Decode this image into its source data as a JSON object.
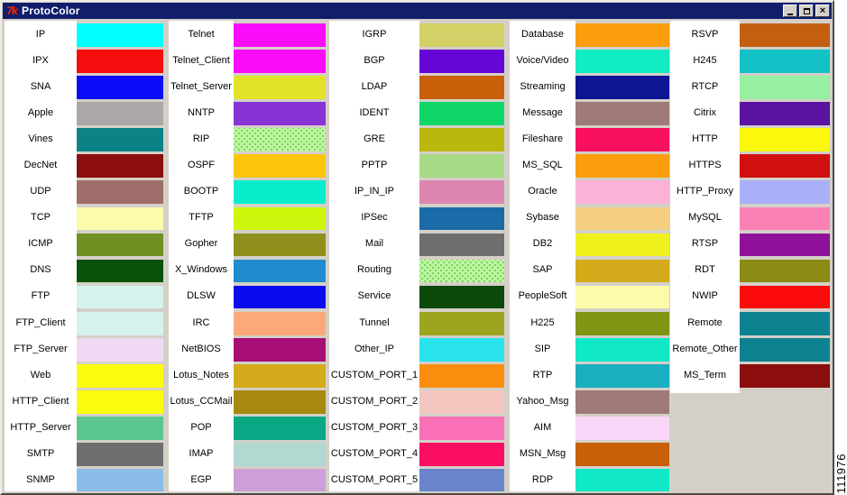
{
  "window": {
    "title": "ProtoColor",
    "titlebar_color": "#101E6B",
    "chrome_color": "#D4D0C8",
    "icon": "tk-logo-icon",
    "icon_glyph": "7k"
  },
  "figure_number": "111976",
  "columns": [
    {
      "items": [
        {
          "label": "IP",
          "color": "#00FFFF"
        },
        {
          "label": "IPX",
          "color": "#F70D0D"
        },
        {
          "label": "SNA",
          "color": "#0B0BF7"
        },
        {
          "label": "Apple",
          "color": "#ACA8A8"
        },
        {
          "label": "Vines",
          "color": "#0B8286"
        },
        {
          "label": "DecNet",
          "color": "#8B0D0D"
        },
        {
          "label": "UDP",
          "color": "#A06E6A"
        },
        {
          "label": "TCP",
          "color": "#FBFBA9"
        },
        {
          "label": "ICMP",
          "color": "#6F9023"
        },
        {
          "label": "DNS",
          "color": "#0A520A"
        },
        {
          "label": "FTP",
          "color": "#D6F2EC"
        },
        {
          "label": "FTP_Client",
          "color": "#D6F2EC"
        },
        {
          "label": "FTP_Server",
          "color": "#F2D9F3"
        },
        {
          "label": "Web",
          "color": "#FBFB0D"
        },
        {
          "label": "HTTP_Client",
          "color": "#FBFB0D"
        },
        {
          "label": "HTTP_Server",
          "color": "#5BC78F"
        },
        {
          "label": "SMTP",
          "color": "#6E6E6E"
        },
        {
          "label": "SNMP",
          "color": "#8ABCE8"
        }
      ]
    },
    {
      "items": [
        {
          "label": "Telnet",
          "color": "#FA0DFA"
        },
        {
          "label": "Telnet_Client",
          "color": "#FA0DFA"
        },
        {
          "label": "Telnet_Server",
          "color": "#E2E22A"
        },
        {
          "label": "NNTP",
          "color": "#8833D6"
        },
        {
          "label": "RIP",
          "color": "#BDF6A0",
          "pattern": "dotted"
        },
        {
          "label": "OSPF",
          "color": "#FCC50A"
        },
        {
          "label": "BOOTP",
          "color": "#0AEDCD"
        },
        {
          "label": "TFTP",
          "color": "#CCF70D"
        },
        {
          "label": "Gopher",
          "color": "#8F8F1B"
        },
        {
          "label": "X_Windows",
          "color": "#1F8CCE"
        },
        {
          "label": "DLSW",
          "color": "#0B0BF0"
        },
        {
          "label": "IRC",
          "color": "#FCA878"
        },
        {
          "label": "NetBIOS",
          "color": "#A60E75"
        },
        {
          "label": "Lotus_Notes",
          "color": "#D4AB1B"
        },
        {
          "label": "Lotus_CCMail",
          "color": "#A8890E"
        },
        {
          "label": "POP",
          "color": "#0BA684"
        },
        {
          "label": "IMAP",
          "color": "#B2D8D2"
        },
        {
          "label": "EGP",
          "color": "#CD9FD8"
        }
      ]
    },
    {
      "items": [
        {
          "label": "IGRP",
          "color": "#D2D066"
        },
        {
          "label": "BGP",
          "color": "#6606D6"
        },
        {
          "label": "LDAP",
          "color": "#C95F09"
        },
        {
          "label": "IDENT",
          "color": "#0ED768"
        },
        {
          "label": "GRE",
          "color": "#BAB70D"
        },
        {
          "label": "PPTP",
          "color": "#A8D985"
        },
        {
          "label": "IP_IN_IP",
          "color": "#DC86B0"
        },
        {
          "label": "IPSec",
          "color": "#1A6BA8"
        },
        {
          "label": "Mail",
          "color": "#6E6E6E"
        },
        {
          "label": "Routing",
          "color": "#BDF6A0",
          "pattern": "dotted"
        },
        {
          "label": "Service",
          "color": "#0B4A0B"
        },
        {
          "label": "Tunnel",
          "color": "#9DA51F"
        },
        {
          "label": "Other_IP",
          "color": "#2BE3EC"
        },
        {
          "label": "CUSTOM_PORT_1",
          "color": "#FA8D0E"
        },
        {
          "label": "CUSTOM_PORT_2",
          "color": "#F3C6C0"
        },
        {
          "label": "CUSTOM_PORT_3",
          "color": "#FA70B6"
        },
        {
          "label": "CUSTOM_PORT_4",
          "color": "#F90E64"
        },
        {
          "label": "CUSTOM_PORT_5",
          "color": "#6A84CC"
        }
      ]
    },
    {
      "items": [
        {
          "label": "Database",
          "color": "#FB9D0D"
        },
        {
          "label": "Voice/Video",
          "color": "#12ECC4"
        },
        {
          "label": "Streaming",
          "color": "#0D1592"
        },
        {
          "label": "Message",
          "color": "#9E7A78"
        },
        {
          "label": "Fileshare",
          "color": "#FA1060"
        },
        {
          "label": "MS_SQL",
          "color": "#FB9D0D"
        },
        {
          "label": "Oracle",
          "color": "#FBB2D6"
        },
        {
          "label": "Sybase",
          "color": "#F5CE81"
        },
        {
          "label": "DB2",
          "color": "#EFF01C"
        },
        {
          "label": "SAP",
          "color": "#D4AB1B"
        },
        {
          "label": "PeopleSoft",
          "color": "#FBFBA9"
        },
        {
          "label": "H225",
          "color": "#7F9513"
        },
        {
          "label": "SIP",
          "color": "#10E8C6"
        },
        {
          "label": "RTP",
          "color": "#19AEC0"
        },
        {
          "label": "Yahoo_Msg",
          "color": "#9E7A78"
        },
        {
          "label": "AIM",
          "color": "#FAD7F8"
        },
        {
          "label": "MSN_Msg",
          "color": "#C95F09"
        },
        {
          "label": "RDP",
          "color": "#10E8C6"
        }
      ]
    },
    {
      "items": [
        {
          "label": "RSVP",
          "color": "#C45E11"
        },
        {
          "label": "H245",
          "color": "#12C2C6"
        },
        {
          "label": "RTCP",
          "color": "#97EFA1"
        },
        {
          "label": "Citrix",
          "color": "#5B13A1"
        },
        {
          "label": "HTTP",
          "color": "#FBF70D"
        },
        {
          "label": "HTTPS",
          "color": "#D11010"
        },
        {
          "label": "HTTP_Proxy",
          "color": "#A9B0F8"
        },
        {
          "label": "MySQL",
          "color": "#FB80B3"
        },
        {
          "label": "RTSP",
          "color": "#8F119A"
        },
        {
          "label": "RDT",
          "color": "#8B8B15"
        },
        {
          "label": "NWIP",
          "color": "#FA0A0A"
        },
        {
          "label": "Remote",
          "color": "#0D8290"
        },
        {
          "label": "Remote_Other",
          "color": "#0D8290"
        },
        {
          "label": "MS_Term",
          "color": "#8B0D0D"
        }
      ]
    }
  ]
}
